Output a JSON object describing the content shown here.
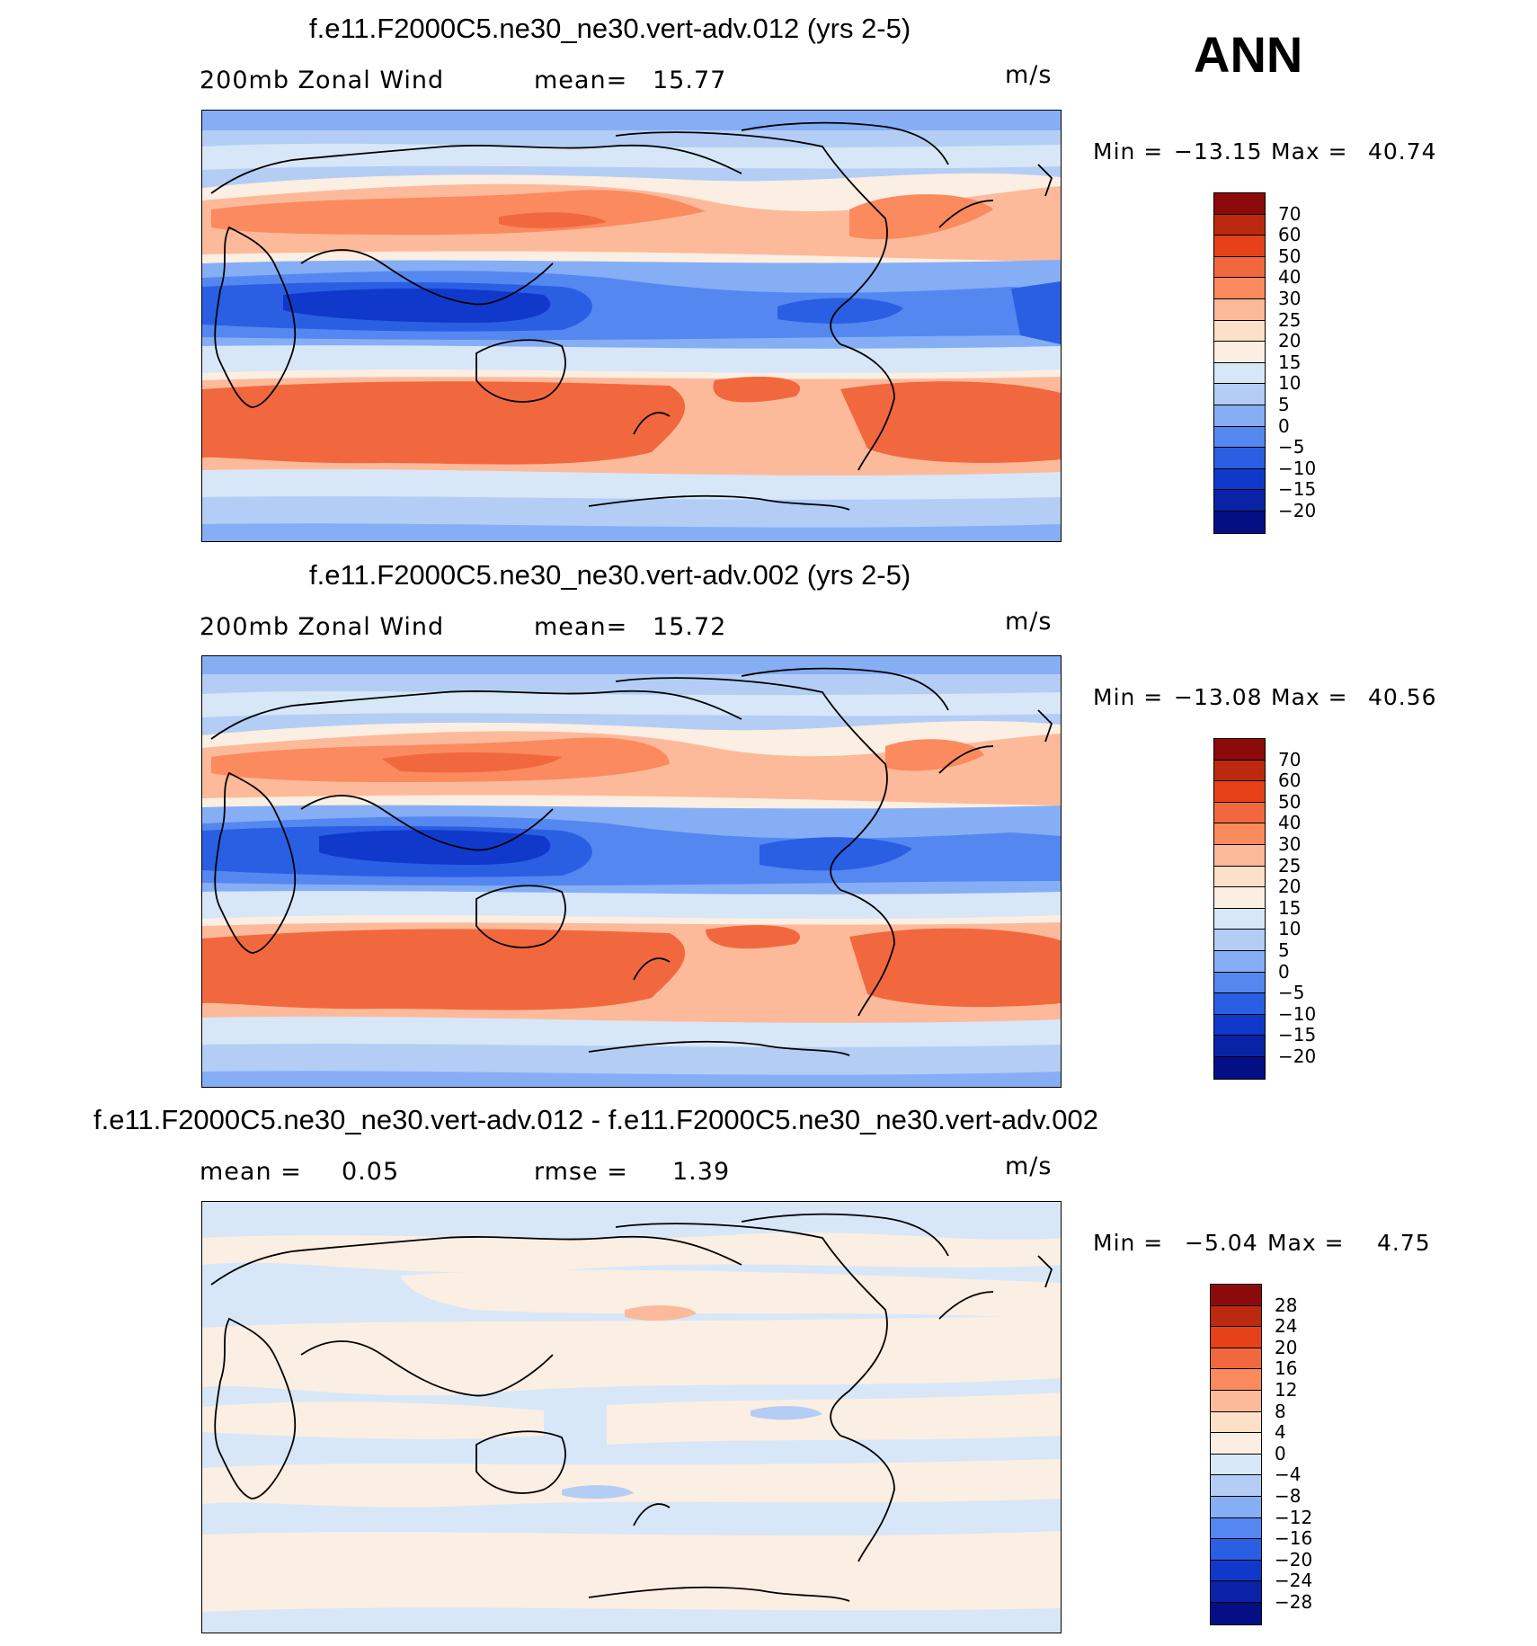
{
  "season": "ANN",
  "panels": [
    {
      "title": "f.e11.F2000C5.ne30_ne30.vert-adv.012 (yrs 2-5)",
      "field_label": "200mb Zonal Wind",
      "stat_label": "mean=",
      "stat_value": "15.77",
      "units": "m/s",
      "min_label": "Min =",
      "min_value": "−13.15",
      "max_label": "Max =",
      "max_value": "40.74",
      "colorbar_labels": [
        "70",
        "60",
        "50",
        "40",
        "30",
        "25",
        "20",
        "15",
        "10",
        "5",
        "0",
        "−5",
        "−10",
        "−15",
        "−20"
      ]
    },
    {
      "title": "f.e11.F2000C5.ne30_ne30.vert-adv.002 (yrs 2-5)",
      "field_label": "200mb Zonal Wind",
      "stat_label": "mean=",
      "stat_value": "15.72",
      "units": "m/s",
      "min_label": "Min =",
      "min_value": "−13.08",
      "max_label": "Max =",
      "max_value": "40.56",
      "colorbar_labels": [
        "70",
        "60",
        "50",
        "40",
        "30",
        "25",
        "20",
        "15",
        "10",
        "5",
        "0",
        "−5",
        "−10",
        "−15",
        "−20"
      ]
    },
    {
      "title": "f.e11.F2000C5.ne30_ne30.vert-adv.012 - f.e11.F2000C5.ne30_ne30.vert-adv.002",
      "field_label": "mean =",
      "field_value": "0.05",
      "stat_label": "rmse =",
      "stat_value": "1.39",
      "units": "m/s",
      "min_label": "Min =",
      "min_value": "−5.04",
      "max_label": "Max =",
      "max_value": "4.75",
      "colorbar_labels": [
        "28",
        "24",
        "20",
        "16",
        "12",
        "8",
        "4",
        "0",
        "−4",
        "−8",
        "−12",
        "−16",
        "−20",
        "−24",
        "−28"
      ]
    }
  ],
  "colors": {
    "scale": [
      "#8c0a0a",
      "#bb2a0e",
      "#e5421a",
      "#f2683e",
      "#fb8a5e",
      "#fcba9b",
      "#fde0c8",
      "#fbeee2",
      "#d7e7f8",
      "#b3cdf5",
      "#86aef5",
      "#5587f0",
      "#2a5fe4",
      "#1039cc",
      "#0a23a6",
      "#050f85"
    ]
  }
}
